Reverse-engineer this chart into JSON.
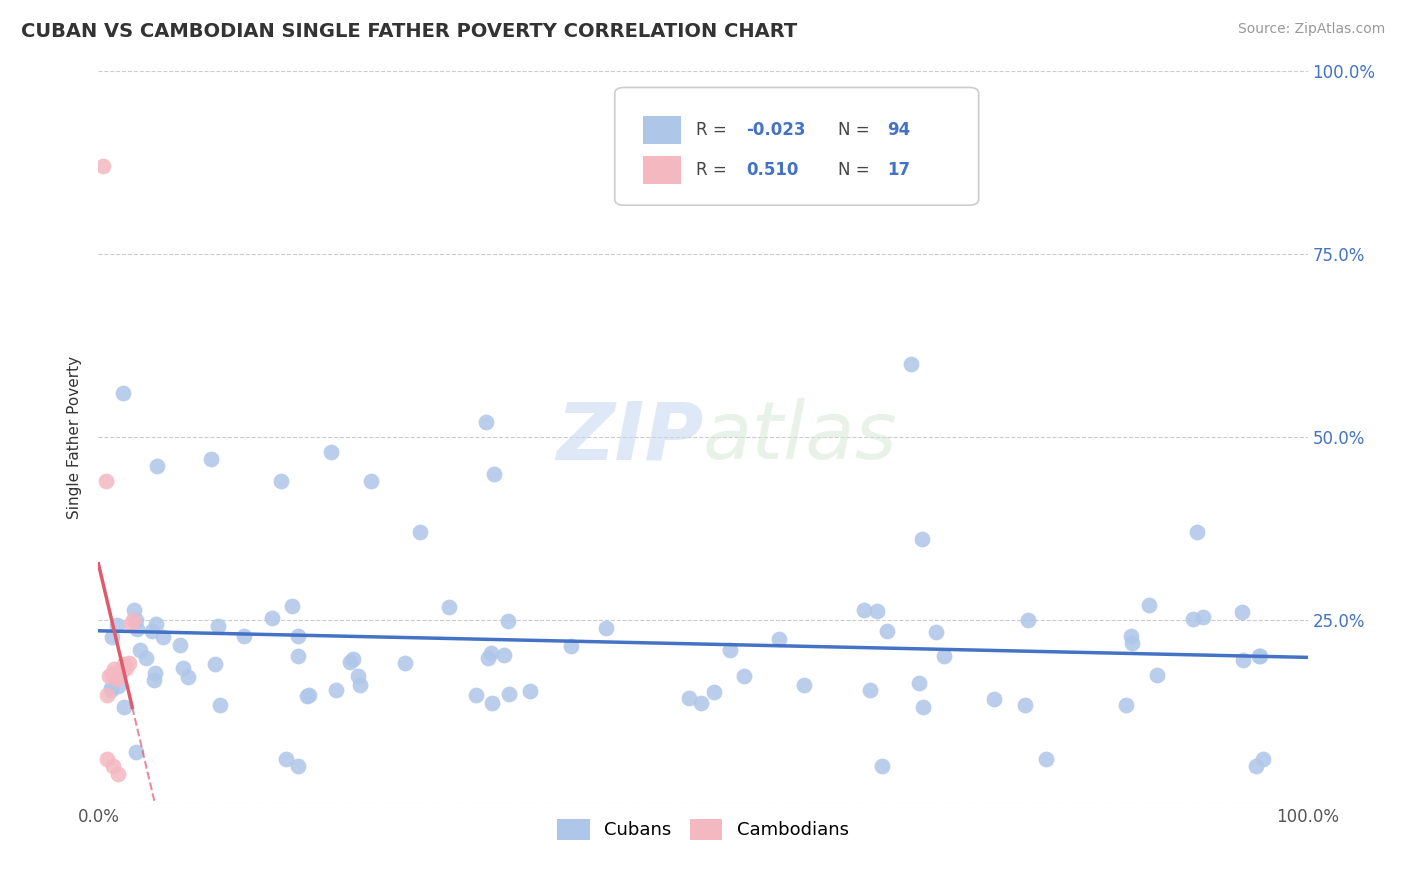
{
  "title": "CUBAN VS CAMBODIAN SINGLE FATHER POVERTY CORRELATION CHART",
  "source": "Source: ZipAtlas.com",
  "ylabel": "Single Father Poverty",
  "xlim": [
    0.0,
    1.0
  ],
  "ylim": [
    0.0,
    1.0
  ],
  "cuban_color": "#aec6e8",
  "cambodian_color": "#f4b8c1",
  "cuban_line_color": "#4472c4",
  "cambodian_line_color": "#e05a6e",
  "watermark": "ZIPatlas",
  "grid_color": "#cccccc",
  "right_tick_color": "#4472c4",
  "cuban_R_label": "-0.023",
  "cuban_N_label": "94",
  "cambodian_R_label": "0.510",
  "cambodian_N_label": "17",
  "legend_label_R": "R = ",
  "legend_label_N": "N = ",
  "bottom_label_cubans": "Cubans",
  "bottom_label_cambodians": "Cambodians"
}
